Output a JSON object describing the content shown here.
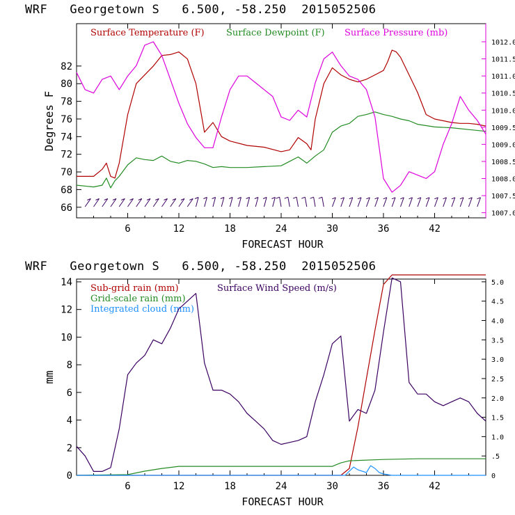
{
  "top_panel": {
    "title": "WRF   Georgetown S   6.500, -58.250  2015052506",
    "chart_data": {
      "type": "line",
      "xlabel": "FORECAST HOUR",
      "ylabel": "Degrees F",
      "xlim": [
        0,
        48
      ],
      "xticks": [
        6,
        12,
        18,
        24,
        30,
        36,
        42
      ],
      "ylim": [
        64.8,
        86.8
      ],
      "yticks": [
        66,
        68,
        70,
        72,
        74,
        76,
        78,
        80,
        82
      ],
      "y2lim": [
        1006.85,
        1012.53
      ],
      "y2ticks": [
        "1007.0",
        "1007.5",
        "1008.0",
        "1008.5",
        "1009.0",
        "1009.5",
        "1010.0",
        "1010.5",
        "1011.0",
        "1011.5",
        "1012.0"
      ],
      "legend_position": "top",
      "series": [
        {
          "name": "Surface Temperature (F)",
          "color": "#b00000",
          "axis": "left",
          "x": [
            0,
            2,
            3,
            3.5,
            4,
            4.5,
            5,
            6,
            7,
            8,
            9,
            10,
            11,
            12,
            13,
            14,
            15,
            16,
            17,
            18,
            20,
            22,
            24,
            25,
            26,
            27,
            27.5,
            28,
            29,
            30,
            31,
            32,
            33,
            34,
            35,
            36,
            36.5,
            37,
            37.5,
            38,
            39,
            40,
            41,
            42,
            43,
            44,
            45,
            46,
            47,
            48
          ],
          "y": [
            69.5,
            69.5,
            70.3,
            71,
            69.5,
            69.3,
            71,
            76.5,
            80,
            81,
            82,
            83.2,
            83.3,
            83.6,
            82.8,
            80,
            74.5,
            75.6,
            74,
            73.5,
            73,
            72.8,
            72.3,
            72.5,
            73.9,
            73.2,
            72.5,
            76,
            80,
            81.8,
            81,
            80.5,
            80.2,
            80.5,
            81,
            81.5,
            82.5,
            83.8,
            83.6,
            83,
            81,
            79,
            76.5,
            76,
            75.8,
            75.6,
            75.5,
            75.5,
            75.4,
            75.2
          ]
        },
        {
          "name": "Surface Dewpoint (F)",
          "color": "#228b22",
          "axis": "left",
          "x": [
            0,
            2,
            3,
            3.5,
            4,
            4.5,
            5,
            6,
            7,
            8,
            9,
            10,
            11,
            12,
            13,
            14,
            15,
            16,
            17,
            18,
            20,
            22,
            24,
            25,
            26,
            27,
            28,
            29,
            30,
            31,
            32,
            33,
            34,
            35,
            36,
            37,
            38,
            39,
            40,
            42,
            44,
            46,
            48
          ],
          "y": [
            68.5,
            68.3,
            68.5,
            69.3,
            68.2,
            69,
            69.5,
            70.8,
            71.6,
            71.4,
            71.3,
            71.8,
            71.2,
            71,
            71.3,
            71.2,
            70.9,
            70.5,
            70.6,
            70.5,
            70.5,
            70.6,
            70.7,
            71.2,
            71.7,
            71,
            71.8,
            72.5,
            74.5,
            75.2,
            75.5,
            76.3,
            76.5,
            76.8,
            76.5,
            76.3,
            76,
            75.8,
            75.4,
            75.1,
            75,
            74.8,
            74.6
          ]
        },
        {
          "name": "Surface Pressure (mb)",
          "color": "#dd00dd",
          "axis": "right",
          "x": [
            0,
            1,
            2,
            3,
            4,
            5,
            6,
            7,
            8,
            9,
            10,
            11,
            12,
            13,
            14,
            15,
            16,
            17,
            18,
            19,
            20,
            21,
            22,
            23,
            24,
            25,
            26,
            27,
            28,
            29,
            30,
            31,
            32,
            33,
            34,
            35,
            36,
            37,
            38,
            39,
            40,
            41,
            42,
            43,
            44,
            45,
            46,
            47,
            48
          ],
          "y": [
            1011.1,
            1010.6,
            1010.5,
            1010.9,
            1011.0,
            1010.6,
            1011.0,
            1011.3,
            1011.9,
            1012.0,
            1011.6,
            1010.9,
            1010.2,
            1009.6,
            1009.2,
            1008.9,
            1008.9,
            1009.8,
            1010.6,
            1011.0,
            1011.0,
            1010.8,
            1010.6,
            1010.4,
            1009.8,
            1009.7,
            1010.0,
            1009.8,
            1010.8,
            1011.5,
            1011.7,
            1011.3,
            1011.0,
            1010.9,
            1010.6,
            1009.8,
            1008.0,
            1007.6,
            1007.8,
            1008.2,
            1008.1,
            1008.0,
            1008.2,
            1009.0,
            1009.6,
            1010.4,
            1010.0,
            1009.7,
            1009.3
          ]
        }
      ],
      "wind_barbs": true
    }
  },
  "bottom_panel": {
    "title": "WRF   Georgetown S   6.500, -58.250  2015052506",
    "chart_data": {
      "type": "line",
      "xlabel": "FORECAST HOUR",
      "ylabel": "mm",
      "xlim": [
        0,
        48
      ],
      "xticks": [
        6,
        12,
        18,
        24,
        30,
        36,
        42
      ],
      "ylim": [
        0,
        14.2
      ],
      "yticks": [
        0,
        2,
        4,
        6,
        8,
        10,
        12,
        14
      ],
      "y2lim": [
        0,
        5.07
      ],
      "y2ticks": [
        "0",
        ".5",
        "1.0",
        "1.5",
        "2.0",
        "2.5",
        "3.0",
        "3.5",
        "4.0",
        "4.5",
        "5.0"
      ],
      "legend_position": "top-left",
      "series": [
        {
          "name": "Sub-grid rain (mm)",
          "color": "#b00000",
          "axis": "left",
          "x": [
            0,
            31,
            32,
            33,
            34,
            35,
            36,
            37,
            48
          ],
          "y": [
            0,
            0,
            0.5,
            3.5,
            7,
            10.5,
            13.8,
            14.5,
            14.5
          ]
        },
        {
          "name": "Grid-scale rain (mm)",
          "color": "#228b22",
          "axis": "left",
          "x": [
            0,
            6,
            8,
            10,
            12,
            30,
            31,
            32,
            36,
            40,
            48
          ],
          "y": [
            0,
            0.05,
            0.3,
            0.5,
            0.65,
            0.65,
            0.9,
            1.05,
            1.15,
            1.2,
            1.2
          ]
        },
        {
          "name": "Integrated cloud (mm)",
          "color": "#1e90ff",
          "axis": "left",
          "x": [
            0,
            31.5,
            32.5,
            33,
            34,
            34.5,
            35,
            35.5,
            36,
            37,
            48
          ],
          "y": [
            0,
            0,
            0.6,
            0.4,
            0.2,
            0.7,
            0.5,
            0.2,
            0.1,
            0,
            0
          ]
        },
        {
          "name": "Surface Wind Speed (m/s)",
          "color": "#3a0060",
          "axis": "right",
          "x": [
            0,
            1,
            2,
            3,
            4,
            5,
            6,
            7,
            8,
            9,
            10,
            11,
            12,
            13,
            14,
            15,
            16,
            17,
            18,
            19,
            20,
            21,
            22,
            23,
            24,
            25,
            26,
            27,
            28,
            29,
            30,
            31,
            32,
            33,
            34,
            35,
            36,
            37,
            38,
            39,
            40,
            41,
            42,
            43,
            44,
            45,
            46,
            47,
            48
          ],
          "y": [
            0.75,
            0.5,
            0.1,
            0.1,
            0.2,
            1.2,
            2.6,
            2.9,
            3.1,
            3.5,
            3.4,
            3.8,
            4.3,
            4.5,
            4.7,
            2.9,
            2.2,
            2.2,
            2.1,
            1.9,
            1.6,
            1.4,
            1.2,
            0.9,
            0.8,
            0.85,
            0.9,
            1.0,
            1.9,
            2.6,
            3.4,
            3.6,
            1.4,
            1.7,
            1.6,
            2.2,
            3.7,
            5.1,
            5.0,
            2.4,
            2.1,
            2.1,
            1.9,
            1.8,
            1.9,
            2.0,
            1.9,
            1.6,
            1.4
          ]
        }
      ]
    }
  }
}
